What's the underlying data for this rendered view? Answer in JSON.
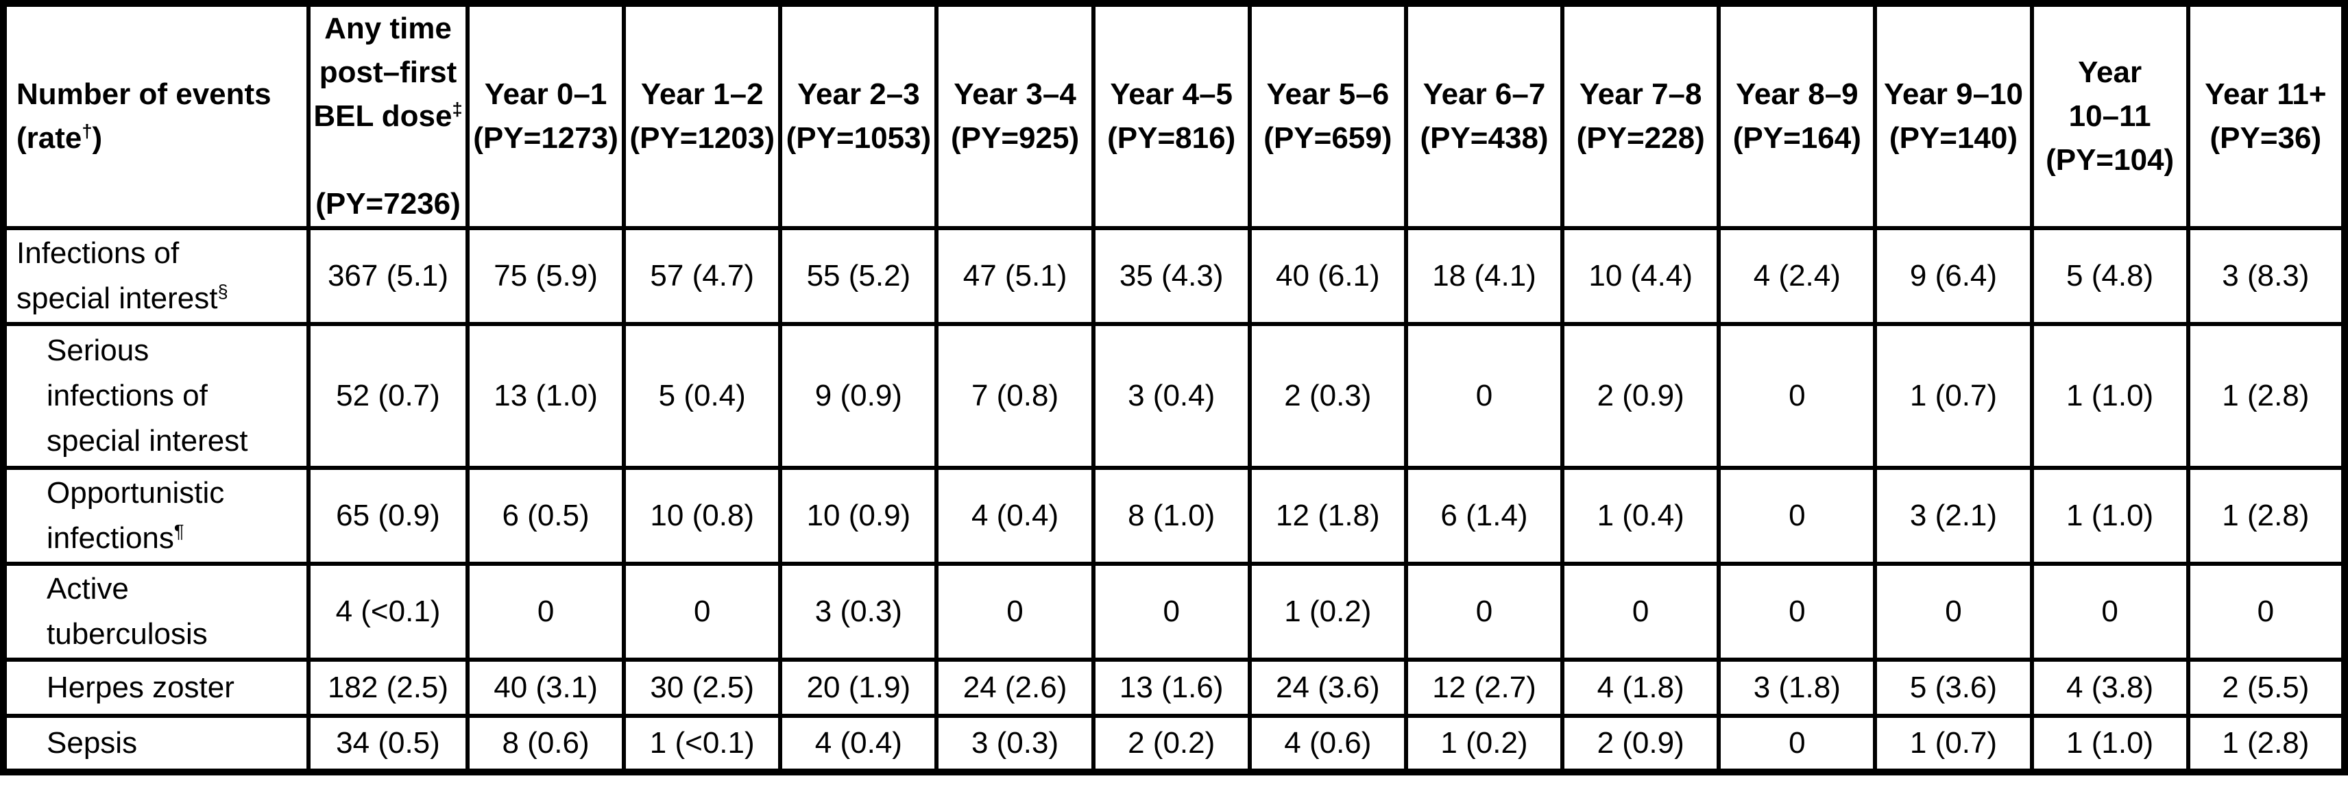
{
  "table": {
    "header": {
      "row_label": "Number of events\n(rate^{†})",
      "columns": [
        "Any time\npost–first\nBEL dose^{‡}\n\n(PY=7236)",
        "Year 0–1\n(PY=1273)",
        "Year 1–2\n(PY=1203)",
        "Year 2–3\n(PY=1053)",
        "Year 3–4\n(PY=925)",
        "Year 4–5\n(PY=816)",
        "Year 5–6\n(PY=659)",
        "Year 6–7\n(PY=438)",
        "Year 7–8\n(PY=228)",
        "Year 8–9\n(PY=164)",
        "Year 9–10\n(PY=140)",
        "Year\n10–11\n(PY=104)",
        "Year 11+\n(PY=36)"
      ]
    },
    "rows": [
      {
        "label": "Infections of\nspecial interest^{§}",
        "indent": false,
        "values": [
          "367 (5.1)",
          "75 (5.9)",
          "57 (4.7)",
          "55 (5.2)",
          "47 (5.1)",
          "35 (4.3)",
          "40 (6.1)",
          "18 (4.1)",
          "10 (4.4)",
          "4 (2.4)",
          "9 (6.4)",
          "5 (4.8)",
          "3 (8.3)"
        ]
      },
      {
        "label": "Serious\ninfections of\nspecial interest",
        "indent": true,
        "values": [
          "52 (0.7)",
          "13 (1.0)",
          "5 (0.4)",
          "9 (0.9)",
          "7 (0.8)",
          "3 (0.4)",
          "2 (0.3)",
          "0",
          "2 (0.9)",
          "0",
          "1 (0.7)",
          "1 (1.0)",
          "1 (2.8)"
        ]
      },
      {
        "label": "Opportunistic\ninfections^{¶}",
        "indent": true,
        "values": [
          "65 (0.9)",
          "6 (0.5)",
          "10 (0.8)",
          "10 (0.9)",
          "4 (0.4)",
          "8 (1.0)",
          "12 (1.8)",
          "6 (1.4)",
          "1 (0.4)",
          "0",
          "3 (2.1)",
          "1 (1.0)",
          "1 (2.8)"
        ]
      },
      {
        "label": "Active\ntuberculosis",
        "indent": true,
        "values": [
          "4 (<0.1)",
          "0",
          "0",
          "3 (0.3)",
          "0",
          "0",
          "1 (0.2)",
          "0",
          "0",
          "0",
          "0",
          "0",
          "0"
        ]
      },
      {
        "label": "Herpes zoster",
        "indent": true,
        "values": [
          "182 (2.5)",
          "40 (3.1)",
          "30 (2.5)",
          "20 (1.9)",
          "24 (2.6)",
          "13 (1.6)",
          "24 (3.6)",
          "12 (2.7)",
          "4 (1.8)",
          "3 (1.8)",
          "5 (3.6)",
          "4 (3.8)",
          "2 (5.5)"
        ]
      },
      {
        "label": "Sepsis",
        "indent": true,
        "values": [
          "34 (0.5)",
          "8 (0.6)",
          "1 (<0.1)",
          "4 (0.4)",
          "3 (0.3)",
          "2 (0.2)",
          "4 (0.6)",
          "1 (0.2)",
          "2 (0.9)",
          "0",
          "1 (0.7)",
          "1 (1.0)",
          "1 (2.8)"
        ]
      }
    ]
  }
}
